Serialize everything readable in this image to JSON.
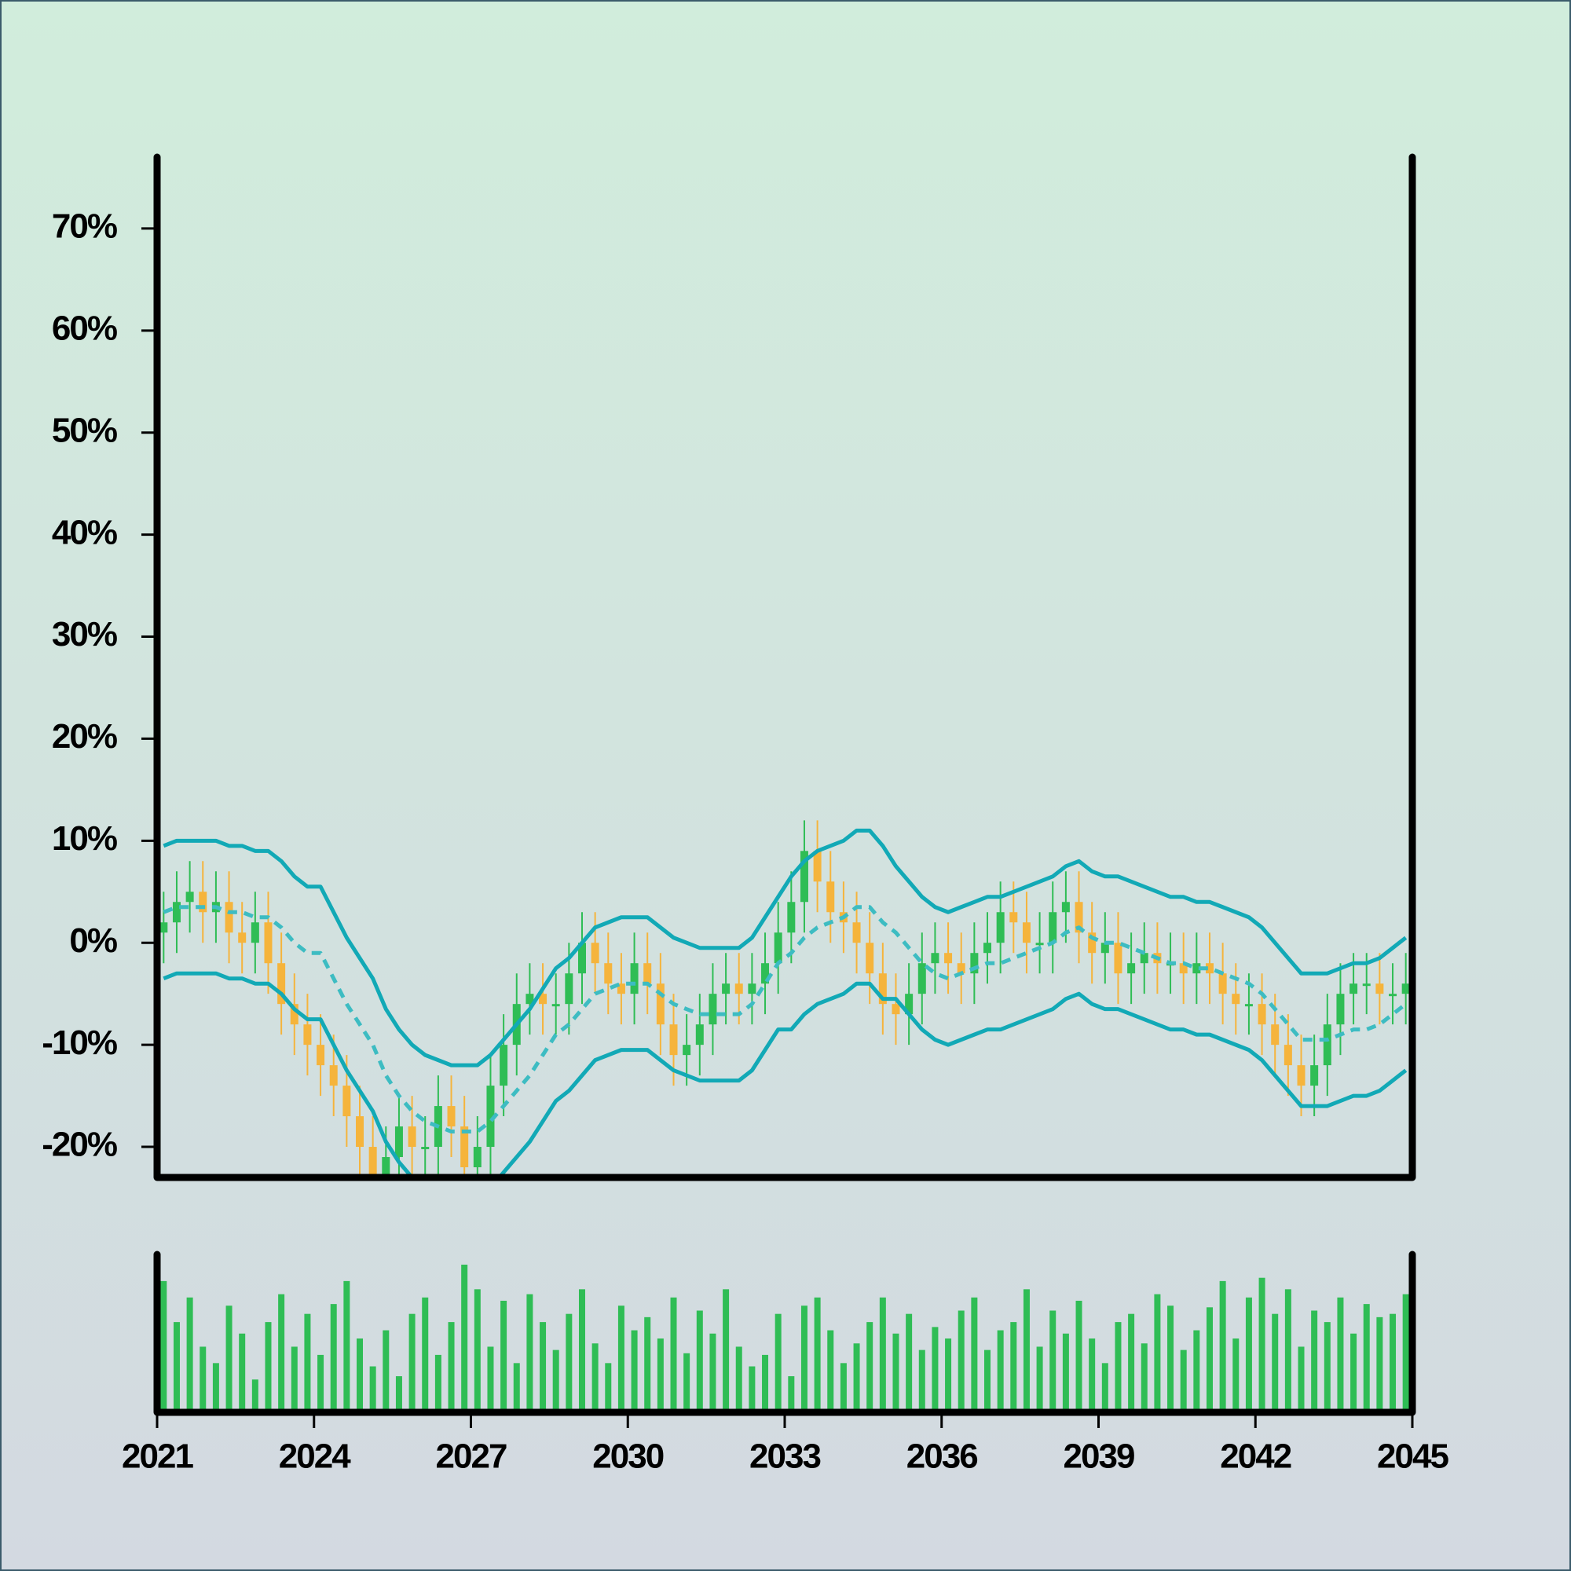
{
  "chart_data": {
    "type": "candlestick",
    "x": [
      2021,
      2021.25,
      2021.5,
      2021.75,
      2022,
      2022.25,
      2022.5,
      2022.75,
      2023,
      2023.25,
      2023.5,
      2023.75,
      2024,
      2024.25,
      2024.5,
      2024.75,
      2025,
      2025.25,
      2025.5,
      2025.75,
      2026,
      2026.25,
      2026.5,
      2026.75,
      2027,
      2027.25,
      2027.5,
      2027.75,
      2028,
      2028.25,
      2028.5,
      2028.75,
      2029,
      2029.25,
      2029.5,
      2029.75,
      2030,
      2030.25,
      2030.5,
      2030.75,
      2031,
      2031.25,
      2031.5,
      2031.75,
      2032,
      2032.25,
      2032.5,
      2032.75,
      2033,
      2033.25,
      2033.5,
      2033.75,
      2034,
      2034.25,
      2034.5,
      2034.75,
      2035,
      2035.25,
      2035.5,
      2035.75,
      2036,
      2036.25,
      2036.5,
      2036.75,
      2037,
      2037.25,
      2037.5,
      2037.75,
      2038,
      2038.25,
      2038.5,
      2038.75,
      2039,
      2039.25,
      2039.5,
      2039.75,
      2040,
      2040.25,
      2040.5,
      2040.75,
      2041,
      2041.25,
      2041.5,
      2041.75,
      2042,
      2042.25,
      2042.5,
      2042.75,
      2043,
      2043.25,
      2043.5,
      2043.75,
      2044,
      2044.25,
      2044.5,
      2044.75
    ],
    "open": [
      1,
      2,
      4,
      5,
      3,
      4,
      1,
      0,
      2,
      -2,
      -6,
      -8,
      -10,
      -12,
      -14,
      -17,
      -20,
      -23,
      -21,
      -18,
      -20,
      -20,
      -16,
      -18,
      -22,
      -20,
      -14,
      -10,
      -6,
      -5,
      -6,
      -6,
      -3,
      0,
      -2,
      -4,
      -5,
      -2,
      -4,
      -8,
      -11,
      -10,
      -8,
      -5,
      -4,
      -5,
      -4,
      -2,
      1,
      4,
      9,
      6,
      3,
      2,
      0,
      -3,
      -6,
      -7,
      -5,
      -2,
      -1,
      -2,
      -3,
      -1,
      0,
      3,
      2,
      0,
      0,
      3,
      4,
      1,
      -1,
      0,
      -3,
      -2,
      -1,
      -2,
      -2,
      -3,
      -2,
      -3,
      -5,
      -6,
      -6,
      -8,
      -10,
      -12,
      -14,
      -12,
      -8,
      -5,
      -4,
      -4,
      -5,
      -5
    ],
    "high": [
      5,
      7,
      8,
      8,
      7,
      7,
      4,
      5,
      5,
      1,
      -3,
      -5,
      -7,
      -9,
      -11,
      -14,
      -17,
      -18,
      -15,
      -15,
      -17,
      -13,
      -13,
      -15,
      -17,
      -11,
      -7,
      -3,
      -2,
      -2,
      -3,
      0,
      3,
      3,
      1,
      -1,
      1,
      1,
      -1,
      -5,
      -7,
      -5,
      -2,
      -1,
      -1,
      -1,
      1,
      4,
      7,
      12,
      12,
      9,
      6,
      5,
      3,
      0,
      -3,
      -2,
      1,
      2,
      2,
      1,
      2,
      3,
      6,
      6,
      5,
      3,
      6,
      7,
      7,
      4,
      3,
      3,
      1,
      2,
      2,
      1,
      1,
      1,
      1,
      0,
      -2,
      -3,
      -3,
      -5,
      -7,
      -9,
      -9,
      -5,
      -2,
      -1,
      -1,
      -1,
      -2,
      -1
    ],
    "low": [
      -2,
      -1,
      1,
      0,
      0,
      -2,
      -3,
      -3,
      -5,
      -9,
      -11,
      -13,
      -15,
      -17,
      -20,
      -23,
      -26,
      -26,
      -24,
      -23,
      -23,
      -23,
      -21,
      -25,
      -25,
      -23,
      -17,
      -13,
      -9,
      -9,
      -9,
      -9,
      -6,
      -5,
      -7,
      -8,
      -8,
      -7,
      -11,
      -14,
      -14,
      -13,
      -11,
      -8,
      -8,
      -8,
      -7,
      -5,
      -2,
      1,
      3,
      0,
      -1,
      -3,
      -6,
      -9,
      -10,
      -10,
      -8,
      -5,
      -5,
      -6,
      -6,
      -4,
      -3,
      -1,
      -3,
      -3,
      -3,
      0,
      -2,
      -4,
      -4,
      -6,
      -6,
      -5,
      -5,
      -5,
      -6,
      -6,
      -6,
      -8,
      -9,
      -9,
      -11,
      -13,
      -15,
      -17,
      -17,
      -15,
      -11,
      -8,
      -7,
      -8,
      -8,
      -8
    ],
    "close": [
      2,
      4,
      5,
      3,
      4,
      1,
      0,
      2,
      -2,
      -6,
      -8,
      -10,
      -12,
      -14,
      -17,
      -20,
      -23,
      -21,
      -18,
      -20,
      -20,
      -16,
      -18,
      -22,
      -20,
      -14,
      -10,
      -6,
      -5,
      -6,
      -6,
      -3,
      0,
      -2,
      -4,
      -5,
      -2,
      -4,
      -8,
      -11,
      -10,
      -8,
      -5,
      -4,
      -5,
      -4,
      -2,
      1,
      4,
      9,
      6,
      3,
      2,
      0,
      -3,
      -6,
      -7,
      -5,
      -2,
      -1,
      -2,
      -3,
      -1,
      0,
      3,
      2,
      0,
      0,
      3,
      4,
      1,
      -1,
      0,
      -3,
      -2,
      -1,
      -2,
      -2,
      -3,
      -2,
      -3,
      -5,
      -6,
      -6,
      -8,
      -10,
      -12,
      -14,
      -12,
      -8,
      -5,
      -4,
      -4,
      -5,
      -5,
      -4
    ],
    "upper_band": {
      "color": "#12a9b6",
      "values": [
        9.5,
        10,
        10,
        10,
        10,
        9.5,
        9.5,
        9,
        9,
        8,
        6.5,
        5.5,
        5.5,
        3,
        0.5,
        -1.5,
        -3.5,
        -6.5,
        -8.5,
        -10,
        -11,
        -11.5,
        -12,
        -12,
        -12,
        -11,
        -9.5,
        -8,
        -6.5,
        -4.5,
        -2.5,
        -1.5,
        0,
        1.5,
        2,
        2.5,
        2.5,
        2.5,
        1.5,
        0.5,
        0,
        -0.5,
        -0.5,
        -0.5,
        -0.5,
        0.5,
        2.5,
        4.5,
        6.5,
        8,
        9,
        9.5,
        10,
        11,
        11,
        9.5,
        7.5,
        6,
        4.5,
        3.5,
        3,
        3.5,
        4,
        4.5,
        4.5,
        5,
        5.5,
        6,
        6.5,
        7.5,
        8,
        7,
        6.5,
        6.5,
        6,
        5.5,
        5,
        4.5,
        4.5,
        4,
        4,
        3.5,
        3,
        2.5,
        1.5,
        0,
        -1.5,
        -3,
        -3,
        -3,
        -2.5,
        -2,
        -2,
        -1.5,
        -0.5,
        0.5
      ]
    },
    "middle_band": {
      "color": "#3dbcc2",
      "values": [
        3,
        3.5,
        3.5,
        3.5,
        3.5,
        3,
        3,
        2.5,
        2.5,
        1.5,
        0,
        -1,
        -1,
        -3.5,
        -6,
        -8,
        -10,
        -13,
        -15,
        -16.5,
        -17.5,
        -18,
        -18.5,
        -18.5,
        -18.5,
        -17.5,
        -16,
        -14.5,
        -13,
        -11,
        -9,
        -8,
        -6.5,
        -5,
        -4.5,
        -4,
        -4,
        -4,
        -5,
        -6,
        -6.5,
        -7,
        -7,
        -7,
        -7,
        -6,
        -4,
        -2,
        -1,
        0.5,
        1.5,
        2,
        2.5,
        3.5,
        3.5,
        2,
        1,
        -0.5,
        -2,
        -3,
        -3.5,
        -3,
        -2.5,
        -2,
        -2,
        -1.5,
        -1,
        -0.5,
        0,
        1,
        1.5,
        0.5,
        0,
        0,
        -0.5,
        -1,
        -1.5,
        -2,
        -2,
        -2.5,
        -2.5,
        -3,
        -3.5,
        -4,
        -5,
        -6.5,
        -8,
        -9.5,
        -9.5,
        -9.5,
        -9,
        -8.5,
        -8.5,
        -8,
        -7,
        -6
      ]
    },
    "lower_band": {
      "color": "#12a9b6",
      "values": [
        -3.5,
        -3,
        -3,
        -3,
        -3,
        -3.5,
        -3.5,
        -4,
        -4,
        -5,
        -6.5,
        -7.5,
        -7.5,
        -10,
        -12.5,
        -14.5,
        -16.5,
        -19.5,
        -21.5,
        -23,
        -24,
        -24.5,
        -25,
        -25,
        -25,
        -24,
        -22.5,
        -21,
        -19.5,
        -17.5,
        -15.5,
        -14.5,
        -13,
        -11.5,
        -11,
        -10.5,
        -10.5,
        -10.5,
        -11.5,
        -12.5,
        -13,
        -13.5,
        -13.5,
        -13.5,
        -13.5,
        -12.5,
        -10.5,
        -8.5,
        -8.5,
        -7,
        -6,
        -5.5,
        -5,
        -4,
        -4,
        -5.5,
        -5.5,
        -7,
        -8.5,
        -9.5,
        -10,
        -9.5,
        -9,
        -8.5,
        -8.5,
        -8,
        -7.5,
        -7,
        -6.5,
        -5.5,
        -5,
        -6,
        -6.5,
        -6.5,
        -7,
        -7.5,
        -8,
        -8.5,
        -8.5,
        -9,
        -9,
        -9.5,
        -10,
        -10.5,
        -11.5,
        -13,
        -14.5,
        -16,
        -16,
        -16,
        -15.5,
        -15,
        -15,
        -14.5,
        -13.5,
        -12.5
      ]
    },
    "volume": {
      "color": "#2fbd55",
      "values": [
        80,
        55,
        70,
        40,
        30,
        65,
        48,
        20,
        55,
        72,
        40,
        60,
        35,
        66,
        80,
        45,
        28,
        50,
        22,
        60,
        70,
        35,
        55,
        90,
        75,
        40,
        68,
        30,
        72,
        55,
        38,
        60,
        75,
        42,
        30,
        65,
        50,
        58,
        45,
        70,
        36,
        62,
        48,
        75,
        40,
        28,
        35,
        60,
        22,
        65,
        70,
        50,
        30,
        42,
        55,
        70,
        48,
        60,
        38,
        52,
        45,
        62,
        70,
        38,
        50,
        55,
        75,
        40,
        62,
        48,
        68,
        45,
        30,
        55,
        60,
        42,
        72,
        65,
        38,
        50,
        64,
        80,
        45,
        70,
        82,
        60,
        75,
        40,
        62,
        55,
        70,
        48,
        66,
        58,
        60,
        72
      ]
    },
    "up_color": "#2fbd55",
    "down_color": "#f5b43c",
    "ylim": [
      -23,
      77
    ],
    "yticks": [
      {
        "value": -20,
        "label": "-20%"
      },
      {
        "value": -10,
        "label": "-10%"
      },
      {
        "value": 0,
        "label": "0%"
      },
      {
        "value": 10,
        "label": "10%"
      },
      {
        "value": 20,
        "label": "20%"
      },
      {
        "value": 30,
        "label": "30%"
      },
      {
        "value": 40,
        "label": "40%"
      },
      {
        "value": 50,
        "label": "50%"
      },
      {
        "value": 60,
        "label": "60%"
      },
      {
        "value": 70,
        "label": "70%"
      }
    ],
    "xlim": [
      2021,
      2045
    ],
    "xticks": [
      2021,
      2024,
      2027,
      2030,
      2033,
      2036,
      2039,
      2042,
      2045
    ]
  }
}
